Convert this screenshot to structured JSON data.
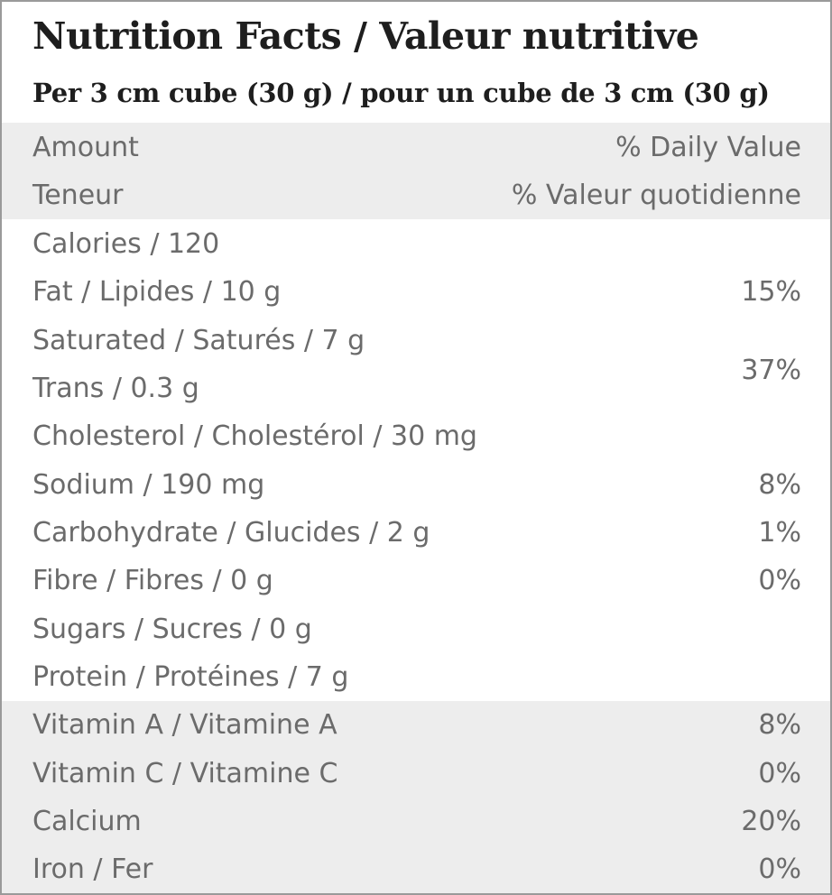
{
  "header": {
    "title": "Nutrition Facts / Valeur nutritive",
    "serving": "Per 3 cm cube (30 g) / pour un cube de 3 cm (30 g)"
  },
  "column_headers": [
    {
      "left": "Amount",
      "right": "% Daily Value"
    },
    {
      "left": "Teneur",
      "right": "% Valeur quotidienne"
    }
  ],
  "nutrients": [
    {
      "label": "Calories / 120",
      "dv": ""
    },
    {
      "label": "Fat / Lipides / 10 g",
      "dv": "15%"
    },
    {
      "label": "Saturated / Saturés / 7 g",
      "dv": ""
    },
    {
      "label": "Trans / 0.3 g",
      "dv": ""
    },
    {
      "label": "Cholesterol / Cholestérol / 30 mg",
      "dv": ""
    },
    {
      "label": "Sodium / 190 mg",
      "dv": "8%"
    },
    {
      "label": "Carbohydrate / Glucides / 2 g",
      "dv": "1%"
    },
    {
      "label": "Fibre / Fibres / 0 g",
      "dv": "0%"
    },
    {
      "label": "Sugars / Sucres / 0 g",
      "dv": ""
    },
    {
      "label": "Protein / Protéines / 7 g",
      "dv": ""
    }
  ],
  "sat_trans_dv": "37%",
  "vitamins": [
    {
      "label": "Vitamin A / Vitamine A",
      "dv": "8%"
    },
    {
      "label": "Vitamin C / Vitamine C",
      "dv": "0%"
    },
    {
      "label": "Calcium",
      "dv": "20%"
    },
    {
      "label": "Iron / Fer",
      "dv": "0%"
    }
  ]
}
